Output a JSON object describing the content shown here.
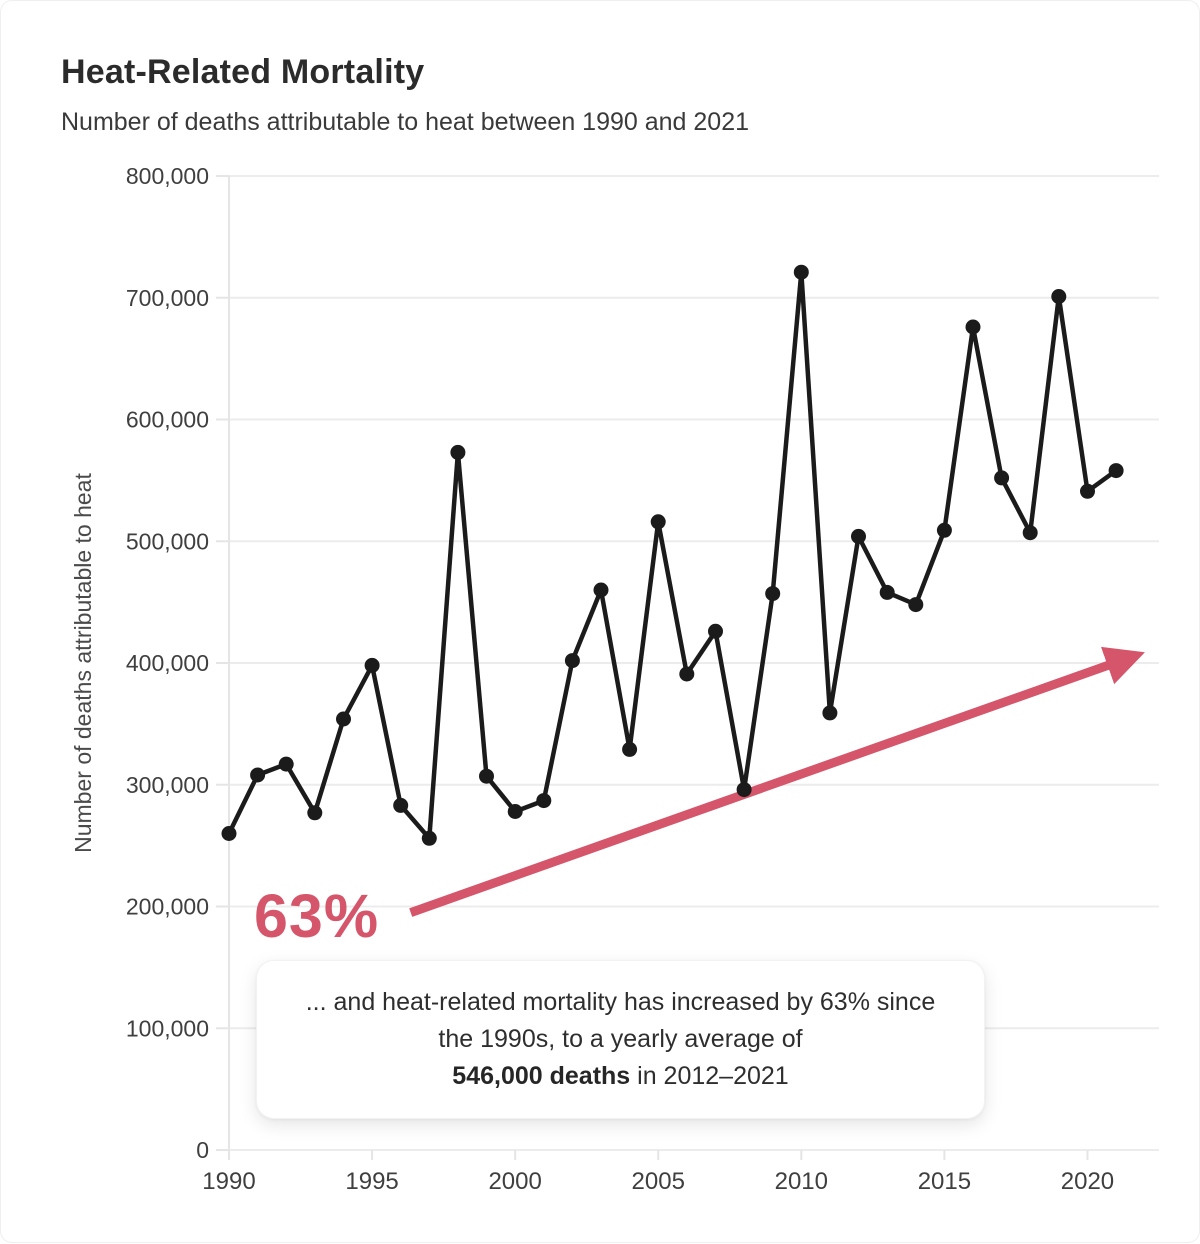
{
  "header": {
    "title": "Heat-Related Mortality",
    "subtitle": "Number of deaths attributable to heat between 1990 and 2021"
  },
  "annotation": {
    "big_label": "63%",
    "arrow": {
      "from_year": 1996.35,
      "from_value": 195000,
      "to_year": 2021.55,
      "to_value": 405000
    },
    "callout": {
      "line1": "... and heat-related mortality has increased by 63% since",
      "line2": "the 1990s, to a yearly average of",
      "bold": "546,000 deaths",
      "tail": " in 2012–2021"
    }
  },
  "chart_data": {
    "type": "line",
    "title": "Heat-Related Mortality",
    "subtitle": "Number of deaths attributable to heat between 1990 and 2021",
    "xlabel": "",
    "ylabel": "Number of deaths attributable to heat",
    "x": [
      1990,
      1991,
      1992,
      1993,
      1994,
      1995,
      1996,
      1997,
      1998,
      1999,
      2000,
      2001,
      2002,
      2003,
      2004,
      2005,
      2006,
      2007,
      2008,
      2009,
      2010,
      2011,
      2012,
      2013,
      2014,
      2015,
      2016,
      2017,
      2018,
      2019,
      2020,
      2021
    ],
    "series": [
      {
        "name": "Deaths attributable to heat",
        "values": [
          260000,
          308000,
          317000,
          277000,
          354000,
          398000,
          283000,
          256000,
          573000,
          307000,
          278000,
          287000,
          402000,
          460000,
          329000,
          516000,
          391000,
          426000,
          296000,
          457000,
          721000,
          359000,
          504000,
          458000,
          448000,
          509000,
          676000,
          552000,
          507000,
          701000,
          541000,
          558000
        ]
      }
    ],
    "xticks": [
      1990,
      1995,
      2000,
      2005,
      2010,
      2015,
      2020
    ],
    "yticks": [
      0,
      100000,
      200000,
      300000,
      400000,
      500000,
      600000,
      700000,
      800000
    ],
    "xlim": [
      1990,
      2022.5
    ],
    "ylim": [
      0,
      800000
    ],
    "grid": "horizontal",
    "legend": "none",
    "colors": {
      "line": "#1b1b1b",
      "point": "#1b1b1b",
      "accent": "#d5566b",
      "gridline": "#ececec",
      "axis": "#e5e5e5"
    }
  }
}
